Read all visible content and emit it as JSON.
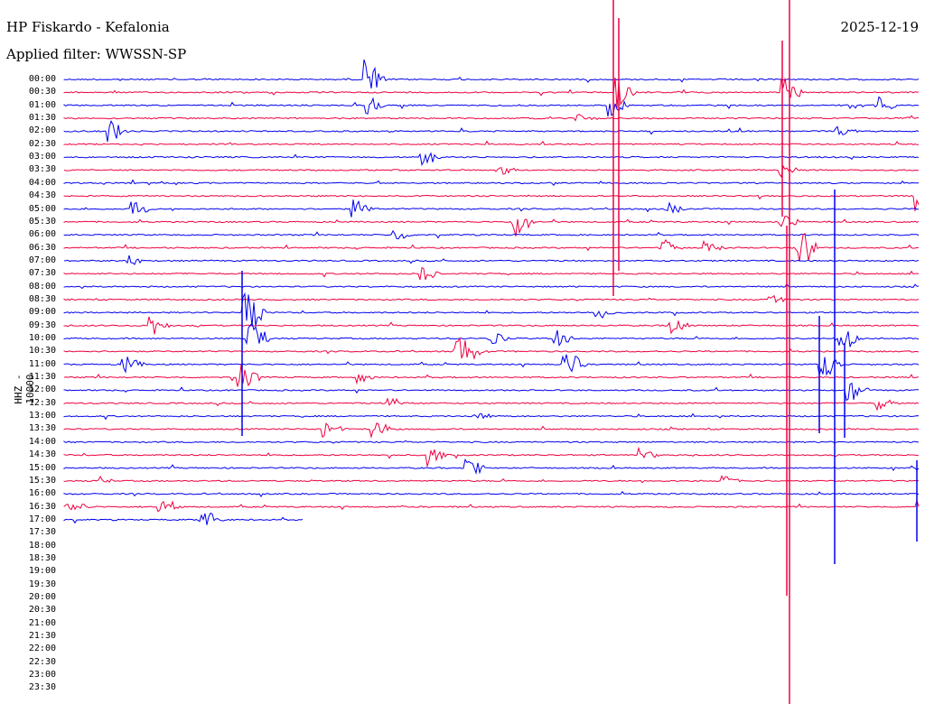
{
  "header": {
    "station": "HP Fiskardo - Kefalonia",
    "filter": "Applied filter: WWSSN-SP",
    "date": "2025-12-19"
  },
  "axis": {
    "channel_label": "HHZ - 10000"
  },
  "colors": {
    "trace_a": "#0000ee",
    "trace_b": "#ee0040"
  },
  "time_labels": [
    "00:00",
    "00:30",
    "01:00",
    "01:30",
    "02:00",
    "02:30",
    "03:00",
    "03:30",
    "04:00",
    "04:30",
    "05:00",
    "05:30",
    "06:00",
    "06:30",
    "07:00",
    "07:30",
    "08:00",
    "08:30",
    "09:00",
    "09:30",
    "10:00",
    "10:30",
    "11:00",
    "11:30",
    "12:00",
    "12:30",
    "13:00",
    "13:30",
    "14:00",
    "14:30",
    "15:00",
    "15:30",
    "16:00",
    "16:30",
    "17:00",
    "17:30",
    "18:00",
    "18:30",
    "19:00",
    "19:30",
    "20:00",
    "20:30",
    "21:00",
    "21:30",
    "22:00",
    "22:30",
    "23:00",
    "23:30"
  ],
  "recorded_rows": 35,
  "last_row_fraction": 0.28
}
